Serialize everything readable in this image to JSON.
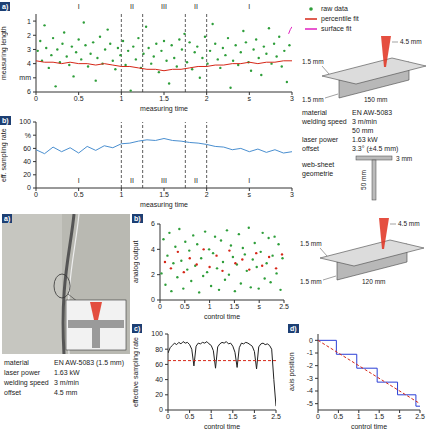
{
  "chart_data": [
    {
      "panel": "a)",
      "type": "scatter",
      "x_label": "measuring time",
      "y_label": "measuring length",
      "xlim": [
        0,
        3
      ],
      "xticks": [
        0,
        0.5,
        1,
        1.5,
        2,
        {
          "value": 2.5,
          "label": "s"
        },
        3
      ],
      "ylim": [
        6,
        0.5
      ],
      "yticks": [
        1,
        2,
        3,
        4,
        {
          "value": 5,
          "label": "mm"
        },
        6
      ],
      "legend": "top right",
      "regions": [
        {
          "label": "I",
          "from": 0,
          "to": 1
        },
        {
          "label": "II",
          "from": 1,
          "to": 1.25
        },
        {
          "label": "III",
          "from": 1.25,
          "to": 1.75
        },
        {
          "label": "II",
          "from": 1.75,
          "to": 2
        },
        {
          "label": "I",
          "from": 2,
          "to": 3
        }
      ],
      "series": [
        {
          "name": "raw data",
          "type": "scatter",
          "color": "#2e9e3a",
          "x": [
            0.02,
            0.05,
            0.07,
            0.1,
            0.12,
            0.15,
            0.18,
            0.2,
            0.23,
            0.25,
            0.28,
            0.31,
            0.33,
            0.36,
            0.39,
            0.42,
            0.44,
            0.47,
            0.5,
            0.53,
            0.56,
            0.58,
            0.61,
            0.64,
            0.67,
            0.7,
            0.72,
            0.75,
            0.78,
            0.81,
            0.84,
            0.87,
            0.9,
            0.93,
            0.96,
            0.99,
            1.02,
            1.05,
            1.08,
            1.11,
            1.14,
            1.17,
            1.2,
            1.23,
            1.26,
            1.29,
            1.32,
            1.35,
            1.38,
            1.41,
            1.44,
            1.47,
            1.5,
            1.53,
            1.56,
            1.59,
            1.62,
            1.65,
            1.68,
            1.71,
            1.74,
            1.77,
            1.8,
            1.83,
            1.86,
            1.89,
            1.92,
            1.95,
            1.98,
            2.01,
            2.04,
            2.07,
            2.1,
            2.13,
            2.16,
            2.19,
            2.22,
            2.25,
            2.28,
            2.31,
            2.34,
            2.37,
            2.4,
            2.43,
            2.46,
            2.49,
            2.52,
            2.55,
            2.58,
            2.61,
            2.64,
            2.67,
            2.7,
            2.73,
            2.76,
            2.79,
            2.82,
            2.85,
            2.88,
            2.91,
            2.94,
            2.97
          ],
          "values": [
            3.1,
            2.4,
            3.8,
            1.3,
            2.9,
            4.3,
            3.4,
            2.2,
            5.6,
            3.0,
            3.9,
            2.6,
            1.8,
            3.5,
            4.1,
            2.8,
            4.9,
            3.2,
            2.3,
            3.7,
            1.1,
            2.7,
            4.2,
            3.3,
            2.5,
            5.2,
            3.6,
            2.1,
            4.0,
            3.0,
            1.6,
            2.6,
            3.8,
            4.4,
            2.9,
            3.4,
            2.4,
            4.1,
            3.1,
            5.9,
            2.8,
            3.7,
            2.2,
            4.3,
            3.3,
            1.4,
            2.9,
            4.0,
            3.5,
            2.6,
            4.6,
            3.1,
            2.4,
            3.8,
            5.4,
            2.7,
            3.6,
            4.2,
            2.3,
            3.0,
            1.9,
            3.9,
            2.5,
            4.4,
            3.2,
            2.8,
            5.0,
            3.6,
            2.1,
            4.0,
            3.1,
            1.2,
            2.6,
            3.7,
            4.3,
            2.9,
            3.4,
            2.2,
            5.7,
            3.8,
            2.7,
            4.1,
            3.2,
            1.7,
            2.5,
            3.9,
            4.5,
            3.0,
            2.3,
            3.6,
            4.8,
            2.8,
            3.3,
            1.5,
            4.0,
            2.6,
            3.5,
            2.1,
            4.2,
            3.1,
            5.3,
            2.7
          ]
        },
        {
          "name": "percentile fit",
          "type": "line",
          "color": "#d62718",
          "x": [
            0,
            0.1,
            0.2,
            0.3,
            0.4,
            0.5,
            0.6,
            0.7,
            0.8,
            0.9,
            1,
            1.1,
            1.2,
            1.3,
            1.4,
            1.5,
            1.6,
            1.7,
            1.8,
            1.9,
            2,
            2.1,
            2.2,
            2.3,
            2.4,
            2.5,
            2.6,
            2.7,
            2.8,
            2.9,
            3
          ],
          "values": [
            3.8,
            3.9,
            3.9,
            4.0,
            3.9,
            4.0,
            4.0,
            4.1,
            4.0,
            4.1,
            4.2,
            4.2,
            4.3,
            4.4,
            4.4,
            4.5,
            4.4,
            4.4,
            4.3,
            4.2,
            4.2,
            4.1,
            4.1,
            4.0,
            4.0,
            3.9,
            4.0,
            3.9,
            3.9,
            3.8,
            3.8
          ]
        },
        {
          "name": "surface fit",
          "type": "line",
          "color": "#e020c0",
          "x": [
            2.96,
            2.98,
            3
          ],
          "values": [
            1.9,
            1.6,
            1.4
          ]
        }
      ]
    },
    {
      "panel": "b)",
      "type": "line",
      "x_label": "measuring time",
      "y_label": "eff. sampling rate",
      "xlim": [
        0,
        3
      ],
      "xticks": [
        0,
        0.5,
        1,
        1.5,
        2,
        {
          "value": 2.5,
          "label": "s"
        },
        3
      ],
      "ylim": [
        0,
        100
      ],
      "yticks": [
        0,
        20,
        40,
        60,
        {
          "value": 80,
          "label": "%"
        },
        100
      ],
      "regions": [
        {
          "label": "I",
          "from": 0,
          "to": 1
        },
        {
          "label": "II",
          "from": 1,
          "to": 1.25
        },
        {
          "label": "III",
          "from": 1.25,
          "to": 1.75
        },
        {
          "label": "II",
          "from": 1.75,
          "to": 2
        },
        {
          "label": "I",
          "from": 2,
          "to": 3
        }
      ],
      "series": [
        {
          "color": "#4a8fd0",
          "x": [
            0,
            0.1,
            0.2,
            0.3,
            0.4,
            0.5,
            0.6,
            0.7,
            0.8,
            0.9,
            1,
            1.1,
            1.2,
            1.3,
            1.4,
            1.5,
            1.6,
            1.7,
            1.8,
            1.9,
            2,
            2.1,
            2.2,
            2.3,
            2.4,
            2.5,
            2.6,
            2.7,
            2.8,
            2.9,
            3
          ],
          "values": [
            58,
            52,
            62,
            55,
            61,
            53,
            63,
            57,
            64,
            61,
            67,
            68,
            71,
            73,
            72,
            75,
            72,
            71,
            69,
            68,
            66,
            63,
            62,
            58,
            60,
            55,
            59,
            54,
            58,
            53,
            55
          ]
        }
      ]
    },
    {
      "panel": "b)",
      "type": "scatter",
      "x_label": "control time",
      "y_label": "analog output",
      "xlim": [
        0,
        2.5
      ],
      "xticks": [
        0,
        0.5,
        1,
        1.5,
        {
          "value": 2,
          "label": "s"
        },
        2.5
      ],
      "ylim": [
        0,
        6
      ],
      "yticks": [
        0,
        2,
        4,
        6
      ],
      "series": [
        {
          "color": "#2e9e3a",
          "x": [
            0.03,
            0.07,
            0.11,
            0.15,
            0.19,
            0.23,
            0.27,
            0.31,
            0.35,
            0.39,
            0.43,
            0.47,
            0.51,
            0.55,
            0.59,
            0.63,
            0.67,
            0.71,
            0.75,
            0.79,
            0.83,
            0.87,
            0.91,
            0.95,
            0.99,
            1.03,
            1.07,
            1.11,
            1.15,
            1.19,
            1.23,
            1.27,
            1.31,
            1.35,
            1.39,
            1.43,
            1.47,
            1.51,
            1.55,
            1.59,
            1.63,
            1.67,
            1.71,
            1.75,
            1.79,
            1.83,
            1.87,
            1.91,
            1.95,
            1.99,
            2.03,
            2.07,
            2.11,
            2.15,
            2.19,
            2.23,
            2.27,
            2.31,
            2.35,
            2.39,
            2.43,
            2.47
          ],
          "values": [
            2.1,
            4.8,
            1.2,
            3.5,
            5.3,
            0.7,
            2.9,
            4.2,
            1.8,
            5.6,
            3.1,
            0.9,
            4.6,
            2.4,
            3.9,
            1.5,
            5.1,
            2.7,
            4.4,
            0.6,
            3.3,
            1.9,
            5.4,
            2.2,
            4.0,
            1.1,
            3.7,
            5.0,
            2.5,
            0.8,
            4.7,
            3.0,
            1.6,
            5.5,
            2.0,
            4.3,
            3.4,
            0.7,
            2.8,
            5.2,
            1.3,
            4.1,
            3.6,
            2.3,
            5.7,
            1.0,
            3.2,
            4.5,
            2.6,
            0.9,
            3.8,
            5.3,
            1.7,
            2.9,
            4.9,
            1.4,
            3.5,
            5.0,
            2.1,
            4.4,
            0.8,
            3.3
          ]
        },
        {
          "color": "#d62718",
          "x": [
            0.1,
            0.22,
            0.36,
            0.48,
            0.6,
            0.74,
            0.88,
            1.0,
            1.14,
            1.26,
            1.4,
            1.52,
            1.66,
            1.8,
            1.94,
            2.06,
            2.2,
            2.34,
            2.46
          ],
          "values": [
            3.0,
            2.5,
            3.8,
            2.2,
            3.3,
            2.8,
            4.0,
            2.6,
            3.5,
            2.3,
            3.9,
            2.9,
            3.2,
            2.4,
            3.7,
            2.7,
            3.4,
            2.5,
            3.6
          ]
        }
      ]
    },
    {
      "panel": "c)",
      "type": "line",
      "x_label": "control time",
      "y_label": "effective sampling rate",
      "xlim": [
        0,
        2.5
      ],
      "xticks": [
        0,
        0.5,
        1,
        1.5,
        {
          "value": 2,
          "label": "s"
        },
        2.5
      ],
      "ylim": [
        0,
        100
      ],
      "yticks": [
        0,
        20,
        40,
        60,
        80,
        100
      ],
      "series": [
        {
          "color": "#222222",
          "x": [
            0,
            0.05,
            0.1,
            0.15,
            0.2,
            0.25,
            0.3,
            0.35,
            0.4,
            0.45,
            0.5,
            0.55,
            0.6,
            0.65,
            0.7,
            0.75,
            0.8,
            0.85,
            0.9,
            0.95,
            1,
            1.05,
            1.1,
            1.15,
            1.2,
            1.25,
            1.3,
            1.35,
            1.4,
            1.45,
            1.5,
            1.55,
            1.6,
            1.65,
            1.7,
            1.75,
            1.8,
            1.85,
            1.9,
            1.95,
            2,
            2.05,
            2.1,
            2.15,
            2.2,
            2.25,
            2.3,
            2.35,
            2.4,
            2.45,
            2.5
          ],
          "values": [
            75,
            82,
            85,
            88,
            86,
            89,
            87,
            90,
            88,
            89,
            86,
            80,
            58,
            84,
            88,
            87,
            89,
            88,
            90,
            87,
            85,
            78,
            55,
            83,
            87,
            89,
            88,
            90,
            87,
            88,
            84,
            76,
            56,
            82,
            88,
            87,
            89,
            88,
            86,
            84,
            77,
            54,
            83,
            87,
            88,
            86,
            87,
            85,
            80,
            40,
            5
          ]
        },
        {
          "color": "#d62718",
          "line_style": "dashed",
          "x": [
            0,
            2.5
          ],
          "values": [
            65,
            65
          ]
        }
      ]
    },
    {
      "panel": "d)",
      "type": "line",
      "x_label": "control time",
      "y_label": "axis position",
      "xlim": [
        0,
        2.5
      ],
      "xticks": [
        0,
        0.5,
        1,
        1.5,
        {
          "value": 2,
          "label": "s"
        },
        2.5
      ],
      "ylim": [
        -5.5,
        0.5
      ],
      "yticks": [
        -5,
        -4,
        -3,
        -2,
        -1,
        0
      ],
      "series": [
        {
          "color": "#2b3fd6",
          "x": [
            0,
            0.45,
            0.45,
            0.95,
            0.95,
            1.45,
            1.45,
            1.95,
            1.95,
            2.4,
            2.4,
            2.5
          ],
          "values": [
            0,
            0,
            -1.1,
            -1.1,
            -2.2,
            -2.2,
            -3.3,
            -3.3,
            -4.3,
            -4.3,
            -5.2,
            -5.2
          ]
        },
        {
          "color": "#d62718",
          "line_style": "dashed",
          "x": [
            0,
            2.5
          ],
          "values": [
            0,
            -5
          ]
        }
      ]
    }
  ],
  "top_right": {
    "schematic_labels": [
      "4.5 mm",
      "1.5 mm",
      "1.5 mm",
      "150 mm"
    ],
    "parameters": [
      {
        "label": "material",
        "value": "EN AW-5083"
      },
      {
        "label": "welding speed",
        "value": "3 m/min"
      },
      {
        "value": "50 mm"
      },
      {
        "label": "laser power",
        "value": "1.63 kW"
      },
      {
        "label": "offset",
        "value": "3.3° (±4.5 mm)"
      }
    ],
    "geometry": {
      "title": "web-sheet geometrie",
      "labels": [
        "3 mm",
        "50 mm"
      ]
    }
  },
  "bottom_left": {
    "panel": "a)",
    "parameters": [
      {
        "label": "material",
        "value": "EN AW-5083 (1.5 mm)"
      },
      {
        "label": "laser power",
        "value": "1.63 kW"
      },
      {
        "label": "welding speed",
        "value": "3 m/min"
      },
      {
        "label": "offset",
        "value": "4.5 mm"
      }
    ]
  },
  "bottom_right": {
    "schematic_labels": [
      "4.5 mm",
      "1.5 mm",
      "1.5 mm",
      "120 mm"
    ]
  }
}
